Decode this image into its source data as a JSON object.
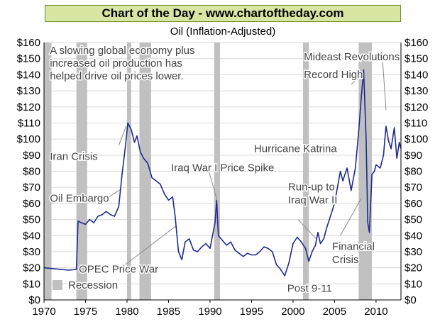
{
  "banner": "Chart of the Day - www.chartoftheday.com",
  "chart_data": {
    "type": "line",
    "title": "Oil (Inflation-Adjusted)",
    "xlabel": "",
    "ylabel": "",
    "xlim": [
      1970,
      2013
    ],
    "ylim": [
      0,
      160
    ],
    "y_ticks": [
      "$0",
      "$10",
      "$20",
      "$30",
      "$40",
      "$50",
      "$60",
      "$70",
      "$80",
      "$90",
      "$100",
      "$110",
      "$120",
      "$130",
      "$140",
      "$150",
      "$160"
    ],
    "y_tick_values": [
      0,
      10,
      20,
      30,
      40,
      50,
      60,
      70,
      80,
      90,
      100,
      110,
      120,
      130,
      140,
      150,
      160
    ],
    "x_ticks": [
      "1970",
      "1975",
      "1980",
      "1985",
      "1990",
      "1995",
      "2000",
      "2005",
      "2010"
    ],
    "x_tick_values": [
      1970,
      1975,
      1980,
      1985,
      1990,
      1995,
      2000,
      2005,
      2010
    ],
    "grid": true,
    "line_color": "#1f2a8c",
    "recession_color": "#c0c0c0",
    "series": [
      {
        "values": [
          [
            1970,
            20
          ],
          [
            1971,
            19.5
          ],
          [
            1972,
            19
          ],
          [
            1973,
            18.5
          ],
          [
            1973.9,
            19
          ],
          [
            1974.1,
            49
          ],
          [
            1974.5,
            48
          ],
          [
            1975,
            47
          ],
          [
            1975.5,
            50
          ],
          [
            1976,
            48
          ],
          [
            1976.5,
            52
          ],
          [
            1977,
            53
          ],
          [
            1977.5,
            55
          ],
          [
            1978,
            53
          ],
          [
            1978.5,
            52
          ],
          [
            1979,
            58
          ],
          [
            1979.4,
            78
          ],
          [
            1979.8,
            95
          ],
          [
            1980.1,
            110
          ],
          [
            1980.5,
            106
          ],
          [
            1980.9,
            98
          ],
          [
            1981.2,
            102
          ],
          [
            1981.6,
            92
          ],
          [
            1982,
            88
          ],
          [
            1982.5,
            85
          ],
          [
            1983,
            76
          ],
          [
            1983.5,
            74
          ],
          [
            1984,
            72
          ],
          [
            1984.5,
            66
          ],
          [
            1985,
            62
          ],
          [
            1985.5,
            64
          ],
          [
            1985.8,
            52
          ],
          [
            1986.2,
            30
          ],
          [
            1986.6,
            25
          ],
          [
            1987,
            36
          ],
          [
            1987.5,
            38
          ],
          [
            1988,
            31
          ],
          [
            1988.5,
            30
          ],
          [
            1989,
            33
          ],
          [
            1989.5,
            35
          ],
          [
            1990,
            32
          ],
          [
            1990.6,
            48
          ],
          [
            1990.8,
            62
          ],
          [
            1991,
            40
          ],
          [
            1991.5,
            37
          ],
          [
            1992,
            34
          ],
          [
            1992.5,
            36
          ],
          [
            1993,
            31
          ],
          [
            1993.5,
            29
          ],
          [
            1994,
            27
          ],
          [
            1994.5,
            29
          ],
          [
            1995,
            28
          ],
          [
            1995.5,
            28
          ],
          [
            1996,
            30
          ],
          [
            1996.5,
            33
          ],
          [
            1997,
            32
          ],
          [
            1997.5,
            30
          ],
          [
            1998,
            22
          ],
          [
            1998.5,
            19
          ],
          [
            1999,
            15
          ],
          [
            1999.5,
            23
          ],
          [
            2000,
            35
          ],
          [
            2000.5,
            39
          ],
          [
            2001,
            36
          ],
          [
            2001.5,
            32
          ],
          [
            2001.9,
            24
          ],
          [
            2002.3,
            30
          ],
          [
            2002.7,
            34
          ],
          [
            2003,
            42
          ],
          [
            2003.3,
            35
          ],
          [
            2003.7,
            38
          ],
          [
            2004,
            44
          ],
          [
            2004.5,
            52
          ],
          [
            2005,
            60
          ],
          [
            2005.7,
            80
          ],
          [
            2006,
            74
          ],
          [
            2006.5,
            82
          ],
          [
            2007,
            68
          ],
          [
            2007.5,
            82
          ],
          [
            2007.9,
            104
          ],
          [
            2008.2,
            125
          ],
          [
            2008.5,
            143
          ],
          [
            2008.8,
            100
          ],
          [
            2009,
            48
          ],
          [
            2009.2,
            42
          ],
          [
            2009.5,
            78
          ],
          [
            2009.8,
            80
          ],
          [
            2010,
            84
          ],
          [
            2010.5,
            82
          ],
          [
            2010.9,
            90
          ],
          [
            2011.2,
            108
          ],
          [
            2011.5,
            99
          ],
          [
            2011.8,
            94
          ],
          [
            2012.2,
            107
          ],
          [
            2012.5,
            88
          ],
          [
            2012.8,
            98
          ],
          [
            2013,
            94
          ]
        ]
      }
    ],
    "recessions": [
      [
        1970.0,
        1970.9
      ],
      [
        1973.9,
        1975.2
      ],
      [
        1980.0,
        1980.5
      ],
      [
        1981.5,
        1982.9
      ],
      [
        1990.5,
        1991.2
      ],
      [
        2001.2,
        2001.9
      ],
      [
        2007.9,
        2009.5
      ]
    ],
    "legend": {
      "label": "Recession",
      "placement": "bottom-left"
    },
    "annotations": [
      {
        "text": "A slowing global economy plus",
        "x": 1970.7,
        "y": 153,
        "anchor": "start"
      },
      {
        "text": "increased oil production has",
        "x": 1970.7,
        "y": 145,
        "anchor": "start"
      },
      {
        "text": "helped drive oil prices lower.",
        "x": 1970.7,
        "y": 137,
        "anchor": "start"
      },
      {
        "text": "Iran Crisis",
        "x": 1970.7,
        "y": 87,
        "anchor": "start"
      },
      {
        "text": "Oil Embargo",
        "x": 1970.7,
        "y": 61,
        "anchor": "start"
      },
      {
        "text": "OPEC Price War",
        "x": 1974.2,
        "y": 17,
        "anchor": "start"
      },
      {
        "text": "Iraq War I Price Spike",
        "x": 1985.3,
        "y": 80,
        "anchor": "start"
      },
      {
        "text": "Hurricane Katrina",
        "x": 1995.3,
        "y": 92,
        "anchor": "start"
      },
      {
        "text": "Run-up to",
        "x": 1999.4,
        "y": 68,
        "anchor": "start"
      },
      {
        "text": "Iraq War II",
        "x": 1999.4,
        "y": 60,
        "anchor": "start"
      },
      {
        "text": "Post 9-11",
        "x": 1999.3,
        "y": 5,
        "anchor": "start"
      },
      {
        "text": "Financial",
        "x": 2004.7,
        "y": 31,
        "anchor": "start"
      },
      {
        "text": "Crisis",
        "x": 2004.7,
        "y": 23,
        "anchor": "start"
      },
      {
        "text": "Mideast Revolutions",
        "x": 2001.3,
        "y": 149,
        "anchor": "start"
      },
      {
        "text": "Record High",
        "x": 2001.3,
        "y": 138,
        "anchor": "start"
      }
    ],
    "leaders": [
      [
        [
          1979.0,
          96
        ],
        [
          1979.9,
          108
        ]
      ],
      [
        [
          1977.8,
          64
        ],
        [
          1979.3,
          69
        ]
      ],
      [
        [
          1979.3,
          20
        ],
        [
          1985.9,
          46
        ]
      ],
      [
        [
          1989.8,
          81
        ],
        [
          1990.8,
          63
        ]
      ],
      [
        [
          2000.6,
          50
        ],
        [
          2002.8,
          38
        ]
      ],
      [
        [
          2005.7,
          40
        ],
        [
          2008.2,
          63
        ]
      ],
      [
        [
          2007.0,
          134
        ],
        [
          2008.3,
          140
        ]
      ],
      [
        [
          2010.8,
          148
        ],
        [
          2011.2,
          118
        ]
      ]
    ]
  }
}
